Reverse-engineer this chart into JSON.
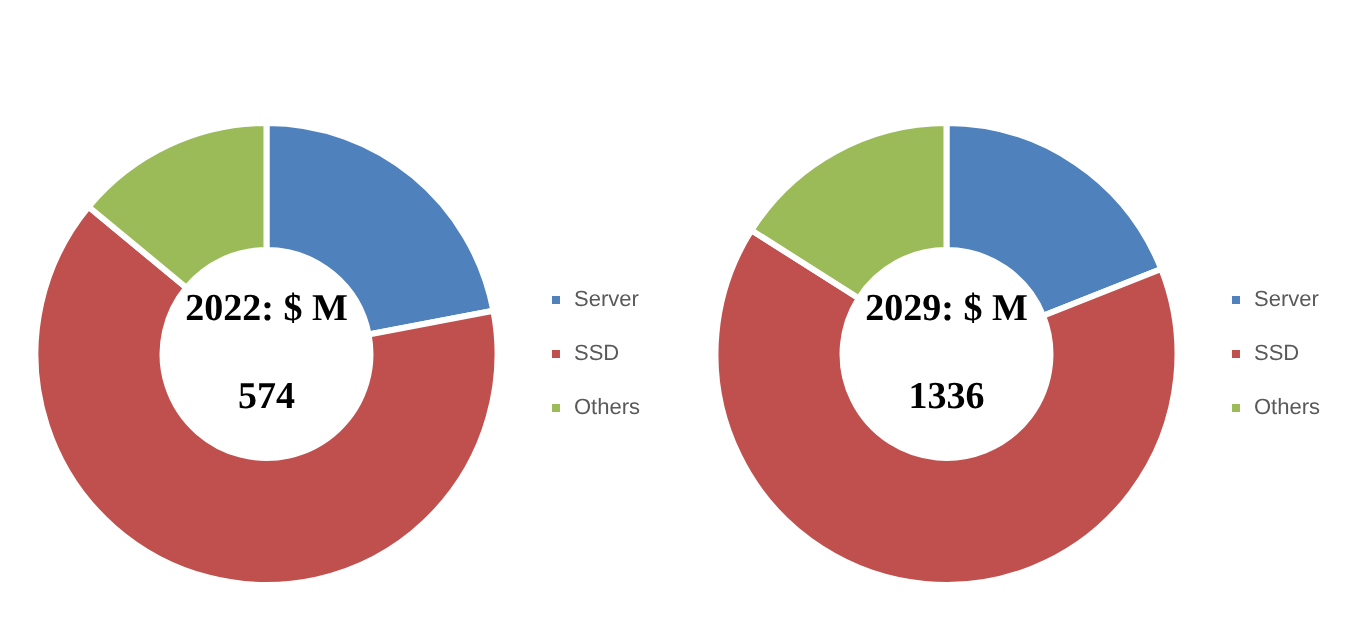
{
  "chart_data": [
    {
      "type": "donut",
      "categories": [
        "Server",
        "SSD",
        "Others"
      ],
      "values": [
        22,
        64,
        14
      ],
      "colors": [
        "#4f81bd",
        "#c0504d",
        "#9bbb59"
      ],
      "legend": "right",
      "annotations": [
        "2022: $ M",
        "574"
      ]
    },
    {
      "type": "donut",
      "categories": [
        "Server",
        "SSD",
        "Others"
      ],
      "values": [
        19,
        65,
        16
      ],
      "colors": [
        "#4f81bd",
        "#c0504d",
        "#9bbb59"
      ],
      "legend": "right",
      "annotations": [
        "2029: $ M",
        "1336"
      ]
    }
  ]
}
